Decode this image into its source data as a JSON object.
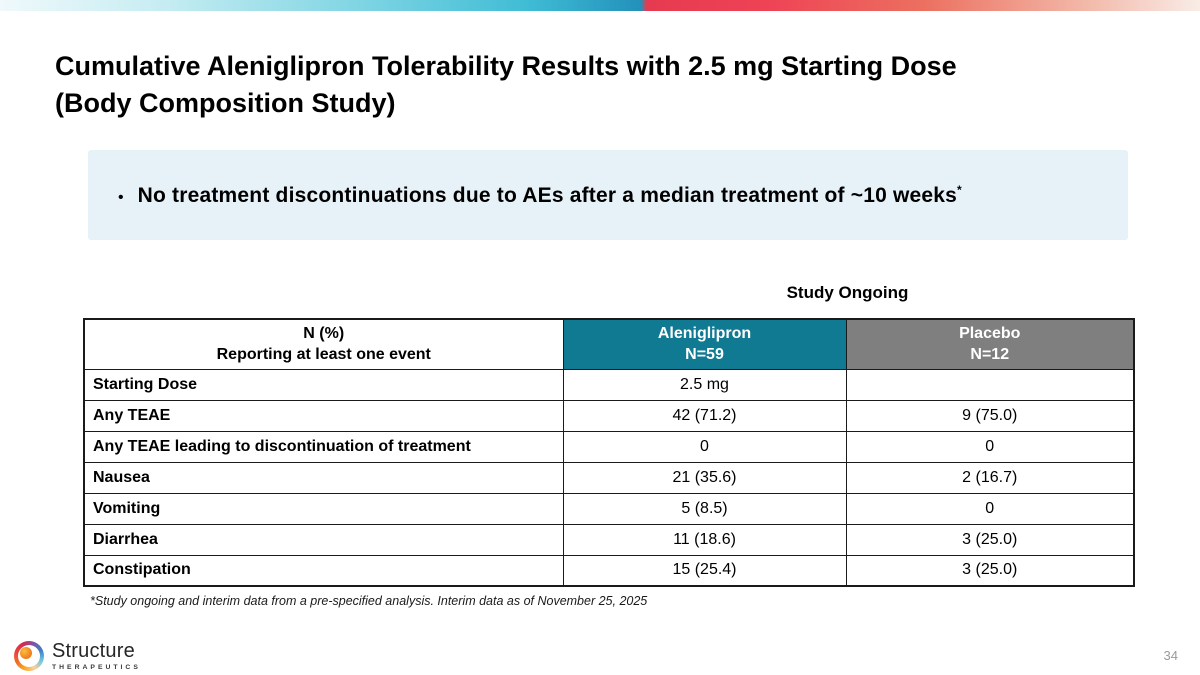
{
  "slide": {
    "title_line1": "Cumulative Aleniglipron Tolerability Results with 2.5 mg Starting Dose",
    "title_line2": "(Body Composition Study)",
    "callout": {
      "bullet_glyph": "•",
      "text": "No treatment discontinuations due to AEs after a median treatment of ~10 weeks",
      "superscript": "*"
    },
    "table_caption": "Study Ongoing",
    "footnote": "*Study ongoing and interim data from a pre-specified analysis. Interim data as of November 25, 2025",
    "page_number": "34"
  },
  "table": {
    "header": {
      "events_line1": "N  (%)",
      "events_line2": "Reporting at least one event",
      "drug_line1": "Aleniglipron",
      "drug_line2": "N=59",
      "placebo_line1": "Placebo",
      "placebo_line2": "N=12"
    },
    "rows": [
      {
        "label": "Starting Dose",
        "aleniglipron": "2.5 mg",
        "placebo": ""
      },
      {
        "label": "Any TEAE",
        "aleniglipron": "42 (71.2)",
        "placebo": "9 (75.0)"
      },
      {
        "label": "Any TEAE leading to discontinuation of treatment",
        "aleniglipron": "0",
        "placebo": "0"
      },
      {
        "label": "Nausea",
        "aleniglipron": "21 (35.6)",
        "placebo": "2 (16.7)"
      },
      {
        "label": "Vomiting",
        "aleniglipron": "5 (8.5)",
        "placebo": "0"
      },
      {
        "label": "Diarrhea",
        "aleniglipron": "11 (18.6)",
        "placebo": "3 (25.0)"
      },
      {
        "label": "Constipation",
        "aleniglipron": "15 (25.4)",
        "placebo": "3 (25.0)"
      }
    ]
  },
  "logo": {
    "name": "Structure",
    "subtext": "THERAPEUTICS"
  },
  "colors": {
    "header_teal": "#117a93",
    "header_gray": "#7f7f7f",
    "callout_bg": "#e6f2f8",
    "bar_teal": "#2391ba",
    "bar_red": "#ee4355"
  }
}
